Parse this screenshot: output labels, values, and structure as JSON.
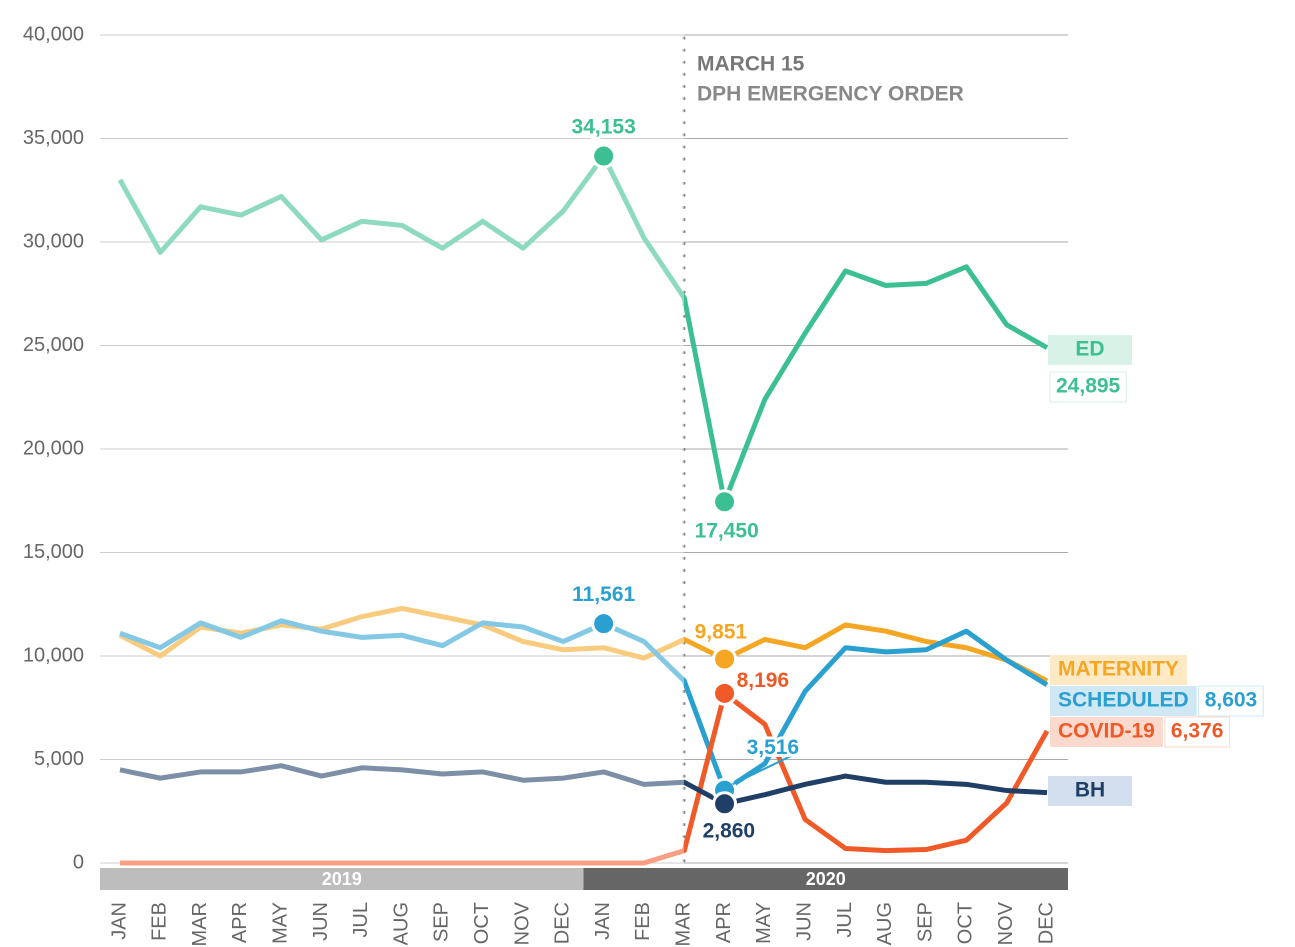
{
  "chart_data": {
    "type": "line",
    "categories": [
      "JAN",
      "FEB",
      "MAR",
      "APR",
      "MAY",
      "JUN",
      "JUL",
      "AUG",
      "SEP",
      "OCT",
      "NOV",
      "DEC",
      "JAN",
      "FEB",
      "MAR",
      "APR",
      "MAY",
      "JUN",
      "JUL",
      "AUG",
      "SEP",
      "OCT",
      "NOV",
      "DEC"
    ],
    "years": [
      {
        "label": "2019",
        "color": "#bdbdbd"
      },
      {
        "label": "2020",
        "color": "#666666"
      }
    ],
    "ylim": [
      0,
      40000
    ],
    "yticks": [
      0,
      {
        "value": 5000,
        "label": "5,000"
      },
      {
        "value": 10000,
        "label": "10,000"
      },
      {
        "value": 15000,
        "label": "15,000"
      },
      {
        "value": 20000,
        "label": "20,000"
      },
      {
        "value": 25000,
        "label": "25,000"
      },
      {
        "value": 30000,
        "label": "30,000"
      },
      {
        "value": 35000,
        "label": "35,000"
      },
      {
        "value": 40000,
        "label": "40,000"
      }
    ],
    "grid": true,
    "event": {
      "title": "MARCH 15",
      "text": "DPH EMERGENCY ORDER"
    },
    "series": [
      {
        "name": "ED",
        "color": "#3dbf94",
        "values": [
          33000,
          29500,
          31700,
          31300,
          32200,
          30100,
          31000,
          30800,
          29700,
          31000,
          29700,
          31500,
          34153,
          30200,
          27300,
          17450,
          22400,
          25600,
          28600,
          27900,
          28000,
          28800,
          26000,
          24895
        ],
        "value_labels": [
          null,
          null,
          null,
          null,
          null,
          null,
          null,
          null,
          null,
          null,
          null,
          null,
          "34,153",
          null,
          null,
          "17,450",
          null,
          null,
          null,
          null,
          null,
          null,
          null,
          "24,895"
        ]
      },
      {
        "name": "MATERNITY",
        "color": "#f5a623",
        "values": [
          11000,
          10000,
          11400,
          11100,
          11500,
          11300,
          11900,
          12300,
          11900,
          11500,
          10700,
          10300,
          10400,
          9900,
          10800,
          9851,
          10800,
          10400,
          11500,
          11200,
          10700,
          10400,
          9800,
          8800
        ],
        "value_labels": [
          null,
          null,
          null,
          null,
          null,
          null,
          null,
          null,
          null,
          null,
          null,
          null,
          null,
          null,
          null,
          "9,851",
          null,
          null,
          null,
          null,
          null,
          null,
          null,
          null
        ]
      },
      {
        "name": "SCHEDULED",
        "color": "#2aa0d0",
        "values": [
          11100,
          10400,
          11600,
          10900,
          11700,
          11200,
          10900,
          11000,
          10500,
          11600,
          11400,
          10700,
          11561,
          10700,
          8800,
          3516,
          4800,
          8300,
          10400,
          10200,
          10300,
          11200,
          9800,
          8603
        ],
        "value_labels": [
          null,
          null,
          null,
          null,
          null,
          null,
          null,
          null,
          null,
          null,
          null,
          null,
          "11,561",
          null,
          null,
          "3,516",
          null,
          null,
          null,
          null,
          null,
          null,
          null,
          "8,603"
        ]
      },
      {
        "name": "COVID-19",
        "color": "#f05a28",
        "values": [
          0,
          0,
          0,
          0,
          0,
          0,
          0,
          0,
          0,
          0,
          0,
          0,
          0,
          0,
          600,
          8196,
          6700,
          2100,
          700,
          600,
          650,
          1100,
          2900,
          6376
        ],
        "value_labels": [
          null,
          null,
          null,
          null,
          null,
          null,
          null,
          null,
          null,
          null,
          null,
          null,
          null,
          null,
          null,
          "8,196",
          null,
          null,
          null,
          null,
          null,
          null,
          null,
          "6,376"
        ]
      },
      {
        "name": "BH",
        "color": "#1f3f66",
        "values": [
          4500,
          4100,
          4400,
          4400,
          4700,
          4200,
          4600,
          4500,
          4300,
          4400,
          4000,
          4100,
          4400,
          3800,
          3900,
          2860,
          3300,
          3800,
          4200,
          3900,
          3900,
          3800,
          3500,
          3400
        ],
        "value_labels": [
          null,
          null,
          null,
          null,
          null,
          null,
          null,
          null,
          null,
          null,
          null,
          null,
          null,
          null,
          null,
          "2,860",
          null,
          null,
          null,
          null,
          null,
          null,
          null,
          null
        ]
      }
    ]
  }
}
